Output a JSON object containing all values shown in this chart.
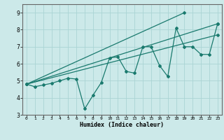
{
  "title": "",
  "xlabel": "Humidex (Indice chaleur)",
  "xlim": [
    -0.5,
    23.5
  ],
  "ylim": [
    3,
    9.5
  ],
  "yticks": [
    3,
    4,
    5,
    6,
    7,
    8,
    9
  ],
  "xticks": [
    0,
    1,
    2,
    3,
    4,
    5,
    6,
    7,
    8,
    9,
    10,
    11,
    12,
    13,
    14,
    15,
    16,
    17,
    18,
    19,
    20,
    21,
    22,
    23
  ],
  "bg_color": "#cce9e9",
  "line_color": "#1a7a6e",
  "grid_color": "#aad4d4",
  "zigzag": {
    "x": [
      0,
      1,
      2,
      3,
      4,
      5,
      6,
      7,
      8,
      9,
      10,
      11,
      12,
      13,
      14,
      15,
      16,
      17,
      18,
      19,
      20,
      21,
      22,
      23
    ],
    "y": [
      4.8,
      4.65,
      4.75,
      4.85,
      5.0,
      5.15,
      5.1,
      3.35,
      4.15,
      4.9,
      6.35,
      6.4,
      5.55,
      5.45,
      7.0,
      7.0,
      5.9,
      5.25,
      8.1,
      7.0,
      7.0,
      6.55,
      6.55,
      8.35
    ]
  },
  "straight_lines": [
    {
      "x": [
        0,
        19
      ],
      "y": [
        4.8,
        9.0
      ]
    },
    {
      "x": [
        0,
        23
      ],
      "y": [
        4.8,
        8.35
      ]
    },
    {
      "x": [
        0,
        23
      ],
      "y": [
        4.8,
        7.7
      ]
    }
  ]
}
